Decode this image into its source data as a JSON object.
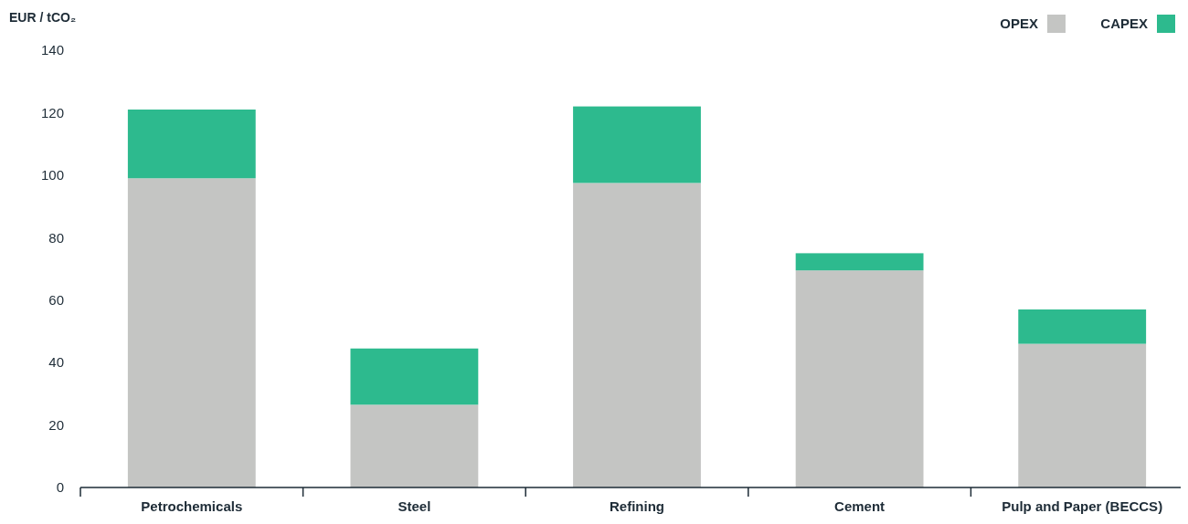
{
  "chart_data": {
    "type": "bar",
    "stacked": true,
    "ylabel": "EUR / tCO₂",
    "categories": [
      "Petrochemicals",
      "Steel",
      "Refining",
      "Cement",
      "Pulp and Paper (BECCS)"
    ],
    "series": [
      {
        "name": "OPEX",
        "color": "#c4c5c3",
        "values": [
          99,
          26.5,
          97.5,
          69.5,
          46
        ]
      },
      {
        "name": "CAPEX",
        "color": "#2dba8e",
        "values": [
          22,
          18,
          24.5,
          5.5,
          11
        ]
      }
    ],
    "ylim": [
      0,
      140
    ],
    "yticks": [
      0,
      20,
      40,
      60,
      80,
      100,
      120,
      140
    ],
    "grid": false,
    "legend": "top right"
  }
}
